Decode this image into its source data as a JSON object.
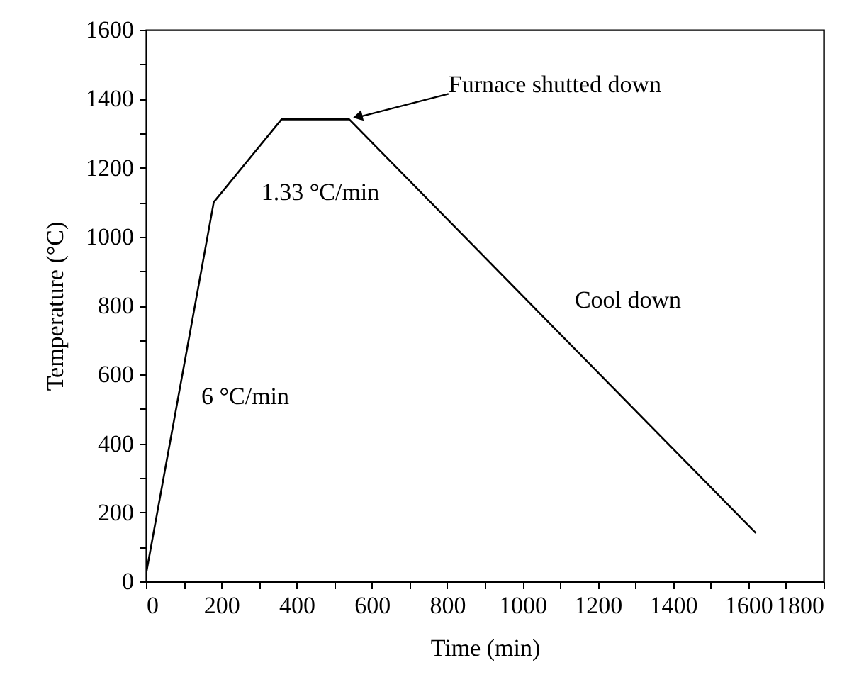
{
  "chart_data": {
    "type": "line",
    "xlabel": "Time (min)",
    "ylabel": "Temperature (°C)",
    "x": [
      0,
      180,
      360,
      540,
      1620
    ],
    "series": [
      {
        "color": "#000000",
        "values": [
          20,
          1100,
          1340,
          1340,
          140
        ]
      }
    ],
    "xlim": [
      0,
      1800
    ],
    "ylim": [
      0,
      1600
    ],
    "xticks": [
      0,
      {
        "value": 100,
        "label": null
      },
      200,
      {
        "value": 300,
        "label": null
      },
      400,
      {
        "value": 500,
        "label": null
      },
      600,
      {
        "value": 700,
        "label": null
      },
      800,
      {
        "value": 900,
        "label": null
      },
      1000,
      {
        "value": 1100,
        "label": null
      },
      1200,
      {
        "value": 1300,
        "label": null
      },
      1400,
      {
        "value": 1500,
        "label": null
      },
      1600,
      {
        "value": 1700,
        "label": null
      },
      1800
    ],
    "yticks": [
      0,
      {
        "value": 100,
        "label": null
      },
      200,
      {
        "value": 300,
        "label": null
      },
      400,
      {
        "value": 500,
        "label": null
      },
      600,
      {
        "value": 700,
        "label": null
      },
      800,
      {
        "value": 900,
        "label": null
      },
      1000,
      {
        "value": 1100,
        "label": null
      },
      1200,
      {
        "value": 1300,
        "label": null
      },
      1400,
      {
        "value": 1500,
        "label": null
      },
      1600
    ],
    "grid": false,
    "marker": "none",
    "line_style": "solid",
    "annotations": [
      {
        "text": "Furnace shutted down",
        "x": 540,
        "y": 1340
      },
      "6 °C/min",
      "1.33 °C/min",
      "Cool down"
    ]
  }
}
